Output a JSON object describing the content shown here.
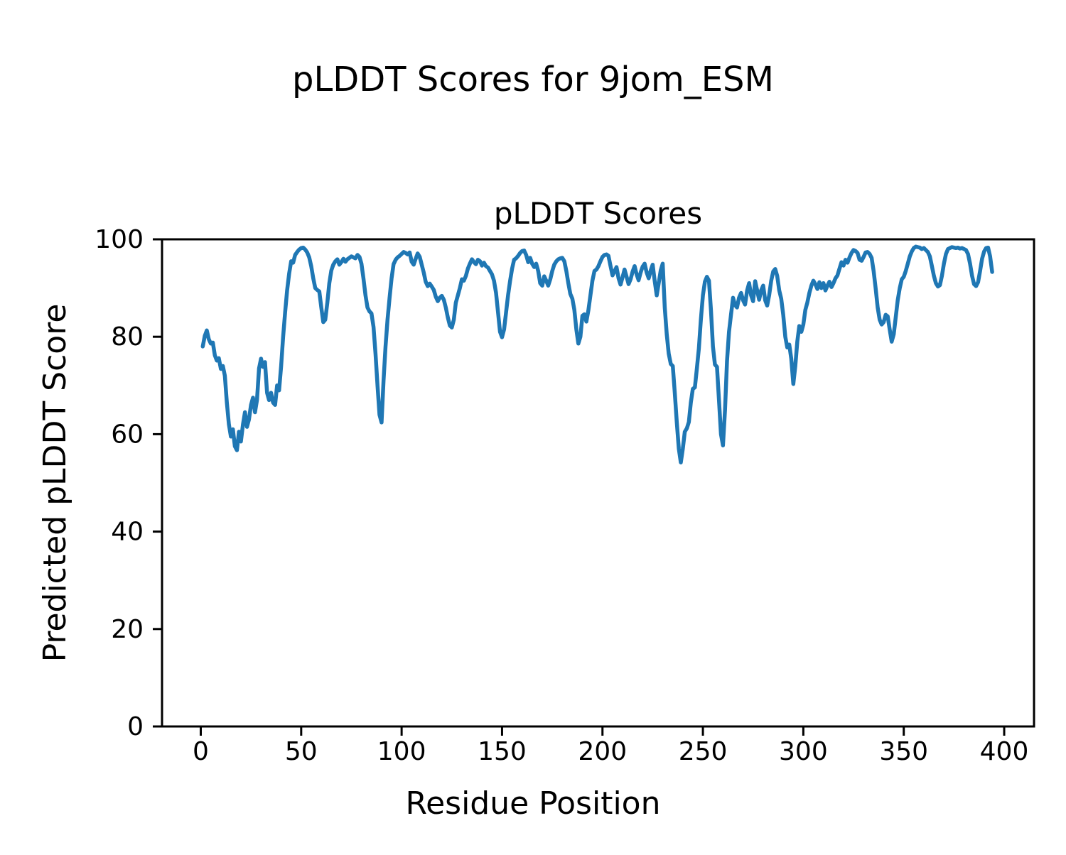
{
  "figure": {
    "suptitle": "pLDDT Scores for 9jom_ESM",
    "axes_title": "pLDDT Scores",
    "xlabel": "Residue Position",
    "ylabel": "Predicted pLDDT Score",
    "background_color": "#ffffff",
    "text_color": "#000000",
    "spine_color": "#000000",
    "line_color": "#1f77b4"
  },
  "chart_data": {
    "type": "line",
    "title": "pLDDT Scores",
    "suptitle": "pLDDT Scores for 9jom_ESM",
    "xlabel": "Residue Position",
    "ylabel": "Predicted pLDDT Score",
    "x_ticks": [
      0,
      50,
      100,
      150,
      200,
      250,
      300,
      350,
      400
    ],
    "y_ticks": [
      0,
      20,
      40,
      60,
      80,
      100
    ],
    "xlim": [
      -18.7,
      415.0
    ],
    "ylim": [
      0,
      100
    ],
    "grid": false,
    "legend": "none",
    "series": [
      {
        "name": "pLDDT",
        "color": "#1f77b4",
        "x_start": 1,
        "x_step": 1,
        "values": [
          78.0,
          80.2,
          81.3,
          79.5,
          78.6,
          78.8,
          76.2,
          75.1,
          75.6,
          73.4,
          74.0,
          72.0,
          66.5,
          62.0,
          59.5,
          61.0,
          57.5,
          56.7,
          60.5,
          58.5,
          62.0,
          64.5,
          61.5,
          63.0,
          66.0,
          67.5,
          64.5,
          67.0,
          73.5,
          75.5,
          73.8,
          74.8,
          68.5,
          67.0,
          68.5,
          66.5,
          66.0,
          70.0,
          69.0,
          74.0,
          80.0,
          85.0,
          89.5,
          93.0,
          95.5,
          95.2,
          96.8,
          97.4,
          97.9,
          98.2,
          98.3,
          97.9,
          97.3,
          96.3,
          94.5,
          92.0,
          90.0,
          89.6,
          89.3,
          86.0,
          83.0,
          83.5,
          87.0,
          91.0,
          93.6,
          94.8,
          95.5,
          95.9,
          94.8,
          95.3,
          96.0,
          95.4,
          95.9,
          96.2,
          96.5,
          96.3,
          96.1,
          96.8,
          96.4,
          95.0,
          92.0,
          88.5,
          86.0,
          85.2,
          84.8,
          82.0,
          76.5,
          70.0,
          64.0,
          62.4,
          71.0,
          78.0,
          83.5,
          88.0,
          92.0,
          94.9,
          95.8,
          96.3,
          96.6,
          97.0,
          97.4,
          97.2,
          96.9,
          97.3,
          95.4,
          94.8,
          96.0,
          97.1,
          96.4,
          94.8,
          93.2,
          91.3,
          90.4,
          90.9,
          90.3,
          89.6,
          88.2,
          87.3,
          88.0,
          88.4,
          87.6,
          86.0,
          84.0,
          82.3,
          81.9,
          83.5,
          87.0,
          88.5,
          90.0,
          91.8,
          91.5,
          92.5,
          94.0,
          95.0,
          95.9,
          95.3,
          94.9,
          95.8,
          95.5,
          94.6,
          95.2,
          94.5,
          94.2,
          93.5,
          92.8,
          91.5,
          89.0,
          85.0,
          81.0,
          79.9,
          81.5,
          85.0,
          88.5,
          91.5,
          94.0,
          95.8,
          96.1,
          96.6,
          97.2,
          97.6,
          97.7,
          96.8,
          95.3,
          96.2,
          95.0,
          94.3,
          95.0,
          93.5,
          91.0,
          90.5,
          92.4,
          91.5,
          90.5,
          91.8,
          93.5,
          94.8,
          95.5,
          95.9,
          96.1,
          96.2,
          95.5,
          93.5,
          91.0,
          88.8,
          87.8,
          85.5,
          81.5,
          78.6,
          80.0,
          84.3,
          84.6,
          83.1,
          85.5,
          88.5,
          91.5,
          93.5,
          93.8,
          94.5,
          95.5,
          96.4,
          96.8,
          96.9,
          96.6,
          94.5,
          92.6,
          93.4,
          94.3,
          92.0,
          90.7,
          92.2,
          93.8,
          92.3,
          90.8,
          91.8,
          93.4,
          94.5,
          92.8,
          91.6,
          93.2,
          94.4,
          95.0,
          93.2,
          92.0,
          93.6,
          94.8,
          91.5,
          88.5,
          91.0,
          93.6,
          95.0,
          86.0,
          80.5,
          76.5,
          74.4,
          74.0,
          68.5,
          62.5,
          57.0,
          54.2,
          57.0,
          60.5,
          61.2,
          62.5,
          66.5,
          69.3,
          69.6,
          73.5,
          77.6,
          83.5,
          88.5,
          91.3,
          92.3,
          91.5,
          85.5,
          78.0,
          74.3,
          73.8,
          67.0,
          60.0,
          57.7,
          65.0,
          75.0,
          81.0,
          84.5,
          88.0,
          86.5,
          86.0,
          88.0,
          89.0,
          87.5,
          86.6,
          89.5,
          91.0,
          88.5,
          87.3,
          91.4,
          89.5,
          87.6,
          89.5,
          90.5,
          87.5,
          86.4,
          88.5,
          91.5,
          93.4,
          93.9,
          92.5,
          89.5,
          87.8,
          84.5,
          80.0,
          77.8,
          78.4,
          75.5,
          70.3,
          74.0,
          79.0,
          82.2,
          81.0,
          82.5,
          85.5,
          87.0,
          89.0,
          90.5,
          91.5,
          90.8,
          89.8,
          91.2,
          90.0,
          91.0,
          89.5,
          90.5,
          91.3,
          90.2,
          91.0,
          92.0,
          92.6,
          94.0,
          95.3,
          94.6,
          95.8,
          95.2,
          96.3,
          97.2,
          97.8,
          97.6,
          97.2,
          95.8,
          95.6,
          96.4,
          97.3,
          97.4,
          97.0,
          96.2,
          93.5,
          90.0,
          86.0,
          83.5,
          82.5,
          83.0,
          84.5,
          84.2,
          81.5,
          79.0,
          80.5,
          84.0,
          87.5,
          90.0,
          91.8,
          92.3,
          93.5,
          95.0,
          96.5,
          97.5,
          98.2,
          98.5,
          98.4,
          98.3,
          98.0,
          98.2,
          97.8,
          97.4,
          96.5,
          94.5,
          92.5,
          91.0,
          90.3,
          90.6,
          92.5,
          95.0,
          97.0,
          98.0,
          98.2,
          98.4,
          98.3,
          98.2,
          98.3,
          98.1,
          98.2,
          98.0,
          97.8,
          97.0,
          95.0,
          92.5,
          90.8,
          90.4,
          91.2,
          93.5,
          96.0,
          97.5,
          98.2,
          98.3,
          96.5,
          93.3
        ]
      }
    ]
  }
}
